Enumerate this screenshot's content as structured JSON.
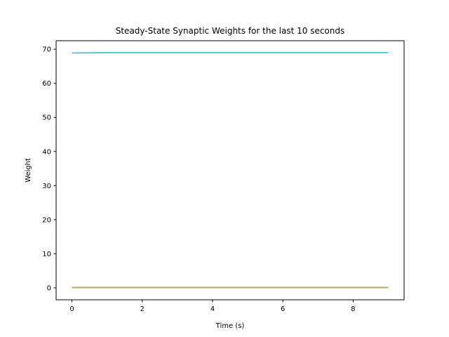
{
  "chart_data": {
    "type": "line",
    "title": "Steady-State Synaptic Weights for the last 10 seconds",
    "xlabel": "Time (s)",
    "ylabel": "Weight",
    "xlim": [
      -0.45,
      9.45
    ],
    "ylim": [
      -3.5,
      72.5
    ],
    "xticks": [
      0,
      2,
      4,
      6,
      8
    ],
    "yticks": [
      0,
      10,
      20,
      30,
      40,
      50,
      60,
      70
    ],
    "grid": false,
    "x": [
      0,
      1,
      2,
      3,
      4,
      5,
      6,
      7,
      8,
      9
    ],
    "series": [
      {
        "color": "#1f77b4",
        "values": [
          0.1,
          0.1,
          0.1,
          0.1,
          0.1,
          0.1,
          0.1,
          0.1,
          0.1,
          0.1
        ]
      },
      {
        "color": "#ff7f0e",
        "values": [
          0.1,
          0.1,
          0.1,
          0.1,
          0.1,
          0.1,
          0.1,
          0.1,
          0.1,
          0.1
        ]
      },
      {
        "color": "#2ca02c",
        "values": [
          0.1,
          0.1,
          0.1,
          0.1,
          0.1,
          0.1,
          0.1,
          0.1,
          0.1,
          0.1
        ]
      },
      {
        "color": "#d62728",
        "values": [
          0.1,
          0.1,
          0.1,
          0.1,
          0.1,
          0.1,
          0.1,
          0.1,
          0.1,
          0.1
        ]
      },
      {
        "color": "#9467bd",
        "values": [
          0.1,
          0.1,
          0.1,
          0.1,
          0.1,
          0.1,
          0.1,
          0.1,
          0.1,
          0.1
        ]
      },
      {
        "color": "#8c564b",
        "values": [
          0.1,
          0.1,
          0.1,
          0.1,
          0.1,
          0.1,
          0.1,
          0.1,
          0.1,
          0.1
        ]
      },
      {
        "color": "#e377c2",
        "values": [
          0.1,
          0.1,
          0.1,
          0.1,
          0.1,
          0.1,
          0.1,
          0.1,
          0.1,
          0.1
        ]
      },
      {
        "color": "#7f7f7f",
        "values": [
          0.1,
          0.1,
          0.1,
          0.1,
          0.1,
          0.1,
          0.1,
          0.1,
          0.1,
          0.1
        ]
      },
      {
        "color": "#bcbd22",
        "values": [
          0.1,
          0.1,
          0.1,
          0.1,
          0.1,
          0.1,
          0.1,
          0.1,
          0.1,
          0.1
        ]
      },
      {
        "color": "#17becf",
        "values": [
          68.9,
          69.0,
          69.0,
          69.0,
          69.0,
          69.0,
          69.0,
          69.0,
          69.0,
          69.0
        ]
      }
    ]
  }
}
